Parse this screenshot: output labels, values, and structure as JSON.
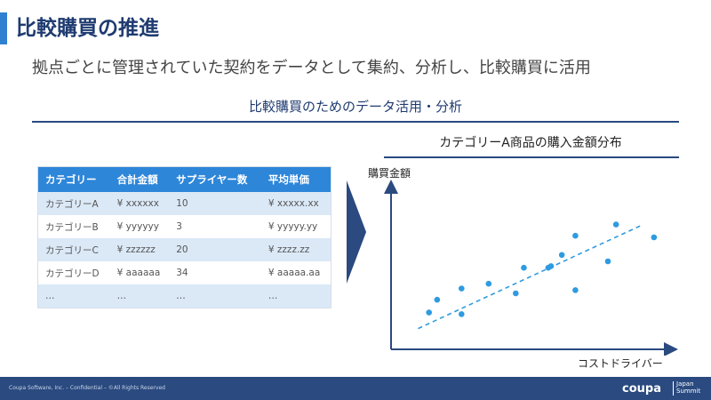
{
  "slide": {
    "title": "比較購買の推進",
    "subtitle": "拠点ごとに管理されていた契約をデータとして集約、分析し、比較購買に活用",
    "section_title": "比較購買のためのデータ活用・分析"
  },
  "table": {
    "headers": [
      "カテゴリー",
      "合計金額",
      "サプライヤー数",
      "平均単価"
    ],
    "rows": [
      [
        "カテゴリーA",
        "¥ xxxxxx",
        "10",
        "¥ xxxxx.xx"
      ],
      [
        "カテゴリーB",
        "¥ yyyyyy",
        "3",
        "¥ yyyyy.yy"
      ],
      [
        "カテゴリーC",
        "¥ zzzzzz",
        "20",
        "¥ zzzz.zz"
      ],
      [
        "カテゴリーD",
        "¥ aaaaaa",
        "34",
        "¥ aaaaa.aa"
      ],
      [
        "…",
        "…",
        "…",
        "…"
      ]
    ]
  },
  "chart_data": {
    "type": "scatter",
    "title": "カテゴリーA商品の購入金額分布",
    "xlabel": "コストドライバー",
    "ylabel": "購買金額",
    "xlim": [
      0,
      100
    ],
    "ylim": [
      0,
      100
    ],
    "points": [
      {
        "x": 14,
        "y": 23
      },
      {
        "x": 17,
        "y": 31
      },
      {
        "x": 26,
        "y": 22
      },
      {
        "x": 26,
        "y": 38
      },
      {
        "x": 36,
        "y": 41
      },
      {
        "x": 46,
        "y": 35
      },
      {
        "x": 49,
        "y": 51
      },
      {
        "x": 58,
        "y": 51
      },
      {
        "x": 59,
        "y": 52
      },
      {
        "x": 63,
        "y": 59
      },
      {
        "x": 68,
        "y": 37
      },
      {
        "x": 68,
        "y": 71
      },
      {
        "x": 80,
        "y": 55
      },
      {
        "x": 83,
        "y": 78
      },
      {
        "x": 97,
        "y": 70
      }
    ],
    "trendline": {
      "x": [
        10,
        93
      ],
      "y": [
        13,
        78
      ]
    },
    "point_color": "#2e9be0",
    "trend_color": "#2e9be0",
    "axis_color": "#2a4a80"
  },
  "footer": {
    "copyright": "Coupa Software, Inc. – Confidential – ©All Rights Reserved",
    "logo_text": "coupa",
    "logo_sub": "Japan Summit"
  },
  "colors": {
    "accent": "#2e86d9",
    "navy": "#2a4a80",
    "row_tint": "#dbe9f7"
  }
}
